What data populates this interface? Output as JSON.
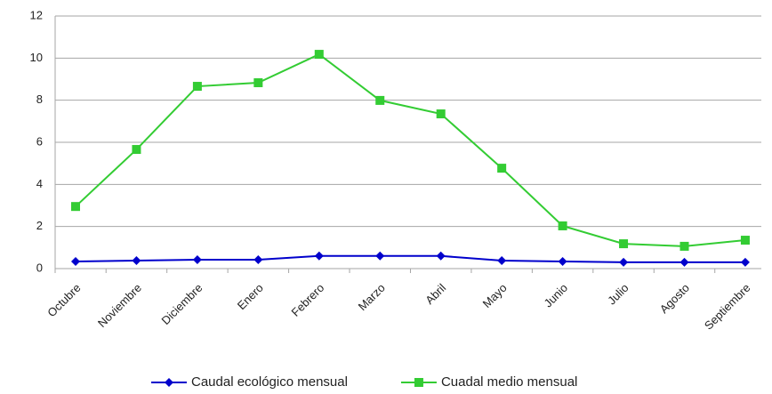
{
  "chart_data": {
    "type": "line",
    "categories": [
      "Octubre",
      "Noviembre",
      "Diciembre",
      "Enero",
      "Febrero",
      "Marzo",
      "Abril",
      "Mayo",
      "Junio",
      "Julio",
      "Agosto",
      "Septiembre"
    ],
    "series": [
      {
        "name": "Caudal ecológico mensual",
        "color": "#0000cc",
        "marker": "diamond",
        "values": [
          0.34,
          0.38,
          0.42,
          0.42,
          0.6,
          0.6,
          0.6,
          0.38,
          0.34,
          0.3,
          0.3,
          0.3
        ]
      },
      {
        "name": "Cuadal medio mensual",
        "color": "#33cc33",
        "marker": "square",
        "values": [
          2.95,
          5.66,
          8.66,
          8.83,
          10.18,
          7.99,
          7.35,
          4.77,
          2.03,
          1.18,
          1.06,
          1.35
        ]
      }
    ],
    "ylim": [
      0,
      12
    ],
    "yticks": [
      0,
      2,
      4,
      6,
      8,
      10,
      12
    ],
    "grid": true,
    "legend": "bottom"
  }
}
